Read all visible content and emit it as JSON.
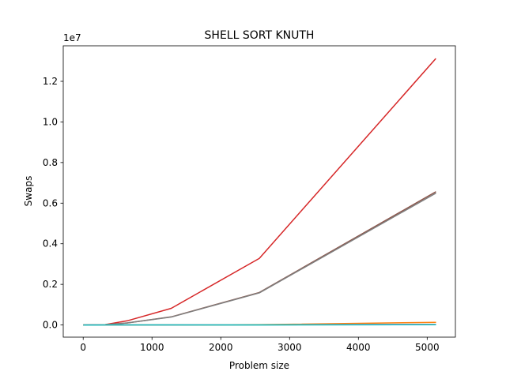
{
  "chart_data": {
    "type": "line",
    "title": "SHELL SORT KNUTH",
    "xlabel": "Problem size",
    "ylabel": "Swaps",
    "y_offset_label": "1e7",
    "xlim": [
      -290,
      5410
    ],
    "ylim": [
      -0.06,
      1.375
    ],
    "y_scale_factor": 10000000,
    "x_ticks": [
      0,
      1000,
      2000,
      3000,
      4000,
      5000
    ],
    "y_ticks": [
      0.0,
      0.2,
      0.4,
      0.6,
      0.8,
      1.0,
      1.2
    ],
    "y_tick_labels": [
      "0.0",
      "0.2",
      "0.4",
      "0.6",
      "0.8",
      "1.0",
      "1.2"
    ],
    "grid": false,
    "x": [
      10,
      20,
      40,
      80,
      160,
      320,
      640,
      1280,
      2560,
      5120
    ],
    "series": [
      {
        "color": "#1f77b4",
        "values": [
          0,
          0,
          0,
          1e-05,
          3e-05,
          7e-05,
          0.00017,
          0.0004,
          0.0009,
          0.002
        ]
      },
      {
        "color": "#ff7f0e",
        "values": [
          0,
          0,
          0,
          2e-05,
          6e-05,
          0.00015,
          0.0003,
          0.0007,
          0.0016,
          0.013
        ]
      },
      {
        "color": "#2ca02c",
        "values": [
          0,
          0,
          0,
          1e-05,
          2e-05,
          5e-05,
          0.0001,
          0.00025,
          0.0006,
          0.0013
        ]
      },
      {
        "color": "#d62728",
        "values": [
          0,
          0,
          1e-05,
          5e-05,
          0.00021,
          0.0019,
          0.0205,
          0.082,
          0.328,
          1.31
        ]
      },
      {
        "color": "#9467bd",
        "values": [
          0,
          0,
          0,
          1e-05,
          3e-05,
          8e-05,
          0.0002,
          0.0005,
          0.0012,
          0.003
        ]
      },
      {
        "color": "#8c564b",
        "values": [
          0,
          0,
          1e-05,
          3e-05,
          0.0001,
          0.0012,
          0.01,
          0.04,
          0.16,
          0.655
        ]
      },
      {
        "color": "#e377c2",
        "values": [
          0,
          0,
          0,
          1e-05,
          2e-05,
          6e-05,
          0.00015,
          0.0004,
          0.001,
          0.0025
        ]
      },
      {
        "color": "#7f7f7f",
        "values": [
          0,
          0,
          1e-05,
          3e-05,
          0.0001,
          0.0011,
          0.0098,
          0.039,
          0.158,
          0.648
        ]
      },
      {
        "color": "#bcbd22",
        "values": [
          0,
          0,
          0,
          1e-05,
          2e-05,
          5e-05,
          0.00012,
          0.0003,
          0.0008,
          0.002
        ]
      },
      {
        "color": "#17becf",
        "values": [
          0,
          0,
          0,
          0,
          1e-05,
          3e-05,
          8e-05,
          0.0002,
          0.0005,
          0.0012
        ]
      }
    ]
  }
}
